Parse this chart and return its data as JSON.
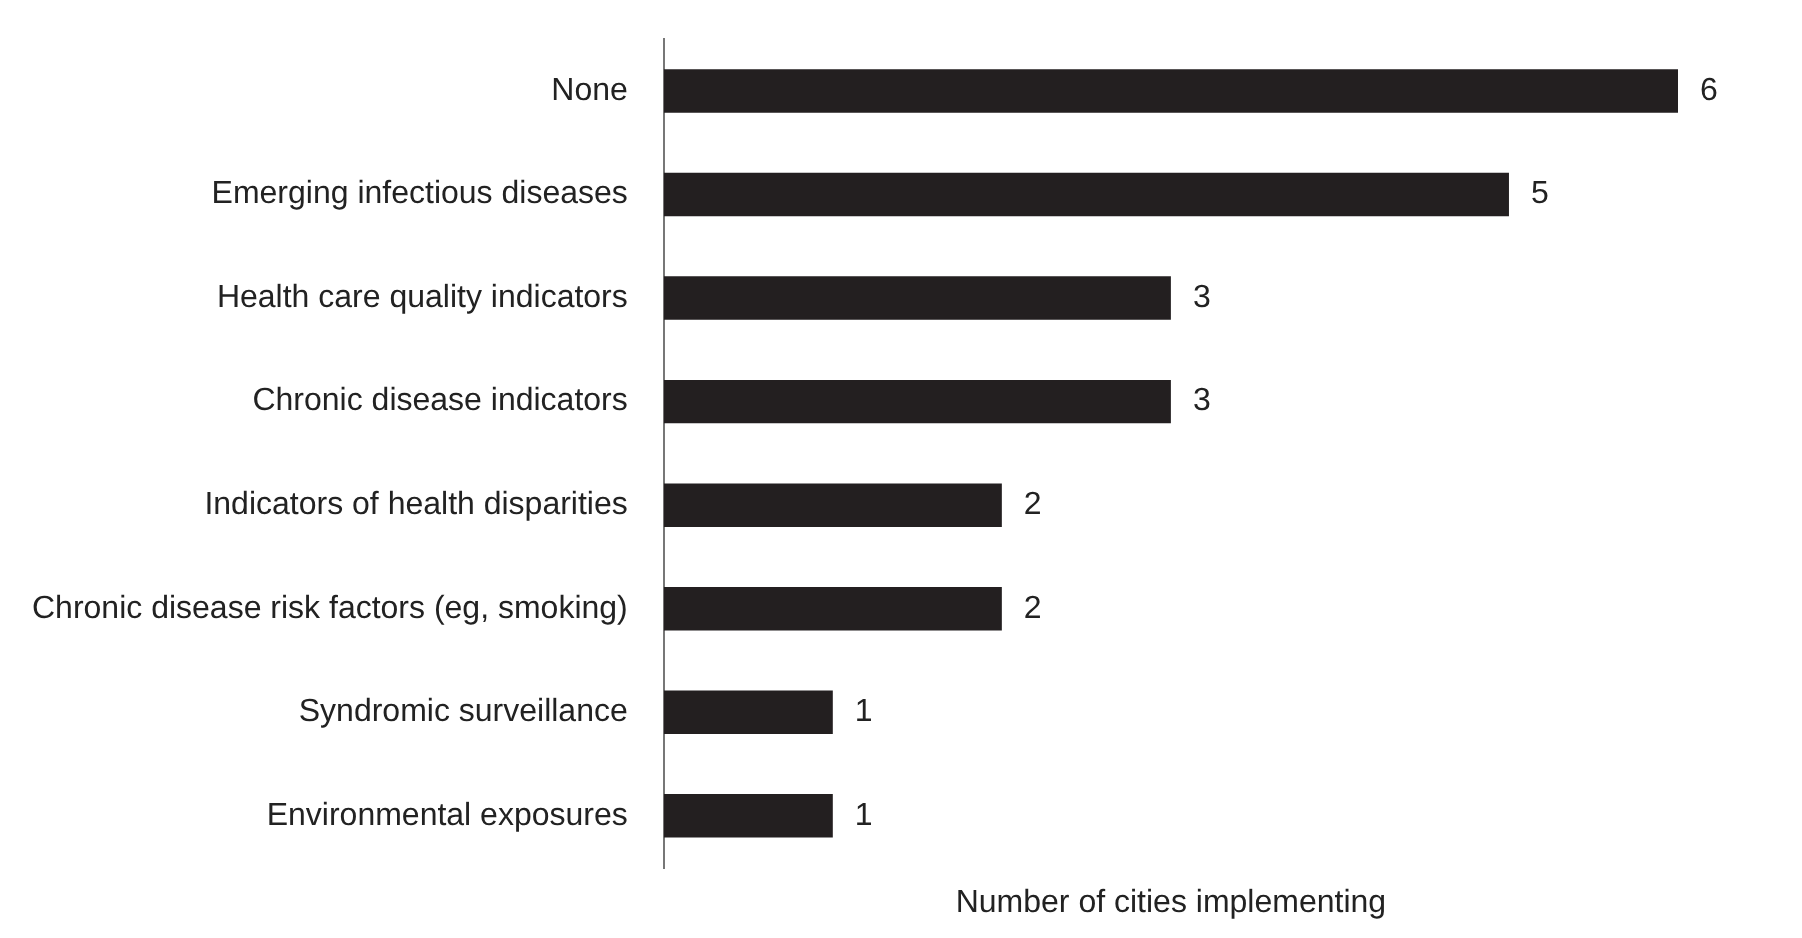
{
  "chart_data": {
    "type": "bar",
    "orientation": "horizontal",
    "xlabel": "Number of cities implementing",
    "categories": [
      "None",
      "Emerging infectious diseases",
      "Health care quality indicators",
      "Chronic disease indicators",
      "Indicators of health disparities",
      "Chronic disease risk factors (eg, smoking)",
      "Syndromic surveillance",
      "Environmental exposures"
    ],
    "values": [
      6,
      5,
      3,
      3,
      2,
      2,
      1,
      1
    ],
    "color": "#231f20",
    "data_labels": true,
    "tick_labels": "y"
  }
}
